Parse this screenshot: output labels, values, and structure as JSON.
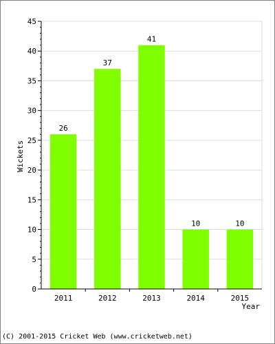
{
  "chart_data": {
    "type": "bar",
    "categories": [
      "2011",
      "2012",
      "2013",
      "2014",
      "2015"
    ],
    "values": [
      26,
      37,
      41,
      10,
      10
    ],
    "data_labels": [
      "26",
      "37",
      "41",
      "10",
      "10"
    ],
    "xlabel": "Year",
    "ylabel": "Wickets",
    "ylim": [
      0,
      45
    ],
    "yticks": [
      0,
      5,
      10,
      15,
      20,
      25,
      30,
      35,
      40,
      45
    ],
    "grid": true,
    "bar_color": "#80ff00",
    "grid_color": "#dddddd"
  },
  "footer": {
    "text": "(C) 2001-2015 Cricket Web (www.cricketweb.net)"
  }
}
